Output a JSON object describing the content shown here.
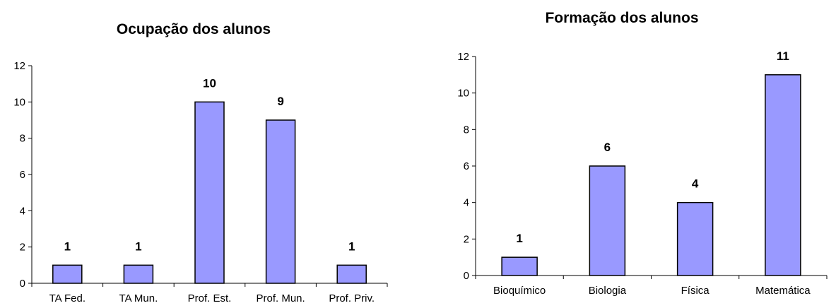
{
  "chart_data": [
    {
      "type": "bar",
      "title": "Ocupação dos alunos",
      "xlabel": "",
      "ylabel": "",
      "categories": [
        "TA Fed.",
        "TA Mun.",
        "Prof. Est.",
        "Prof. Mun.",
        "Prof. Priv."
      ],
      "values": [
        1,
        1,
        10,
        9,
        1
      ],
      "data_labels": [
        "1",
        "1",
        "10",
        "9",
        "1"
      ],
      "ylim": [
        0,
        12
      ],
      "yticks": [
        "0",
        "2",
        "4",
        "6",
        "8",
        "10",
        "12"
      ],
      "grid": false,
      "legend": "none",
      "bar_color": "#9999ff"
    },
    {
      "type": "bar",
      "title": "Formação dos alunos",
      "xlabel": "",
      "ylabel": "",
      "categories": [
        "Bioquímico",
        "Biologia",
        "Física",
        "Matemática"
      ],
      "values": [
        1,
        6,
        4,
        11
      ],
      "data_labels": [
        "1",
        "6",
        "4",
        "11"
      ],
      "ylim": [
        0,
        12
      ],
      "yticks": [
        "0",
        "2",
        "4",
        "6",
        "8",
        "10",
        "12"
      ],
      "grid": false,
      "legend": "none",
      "bar_color": "#9999ff"
    }
  ]
}
